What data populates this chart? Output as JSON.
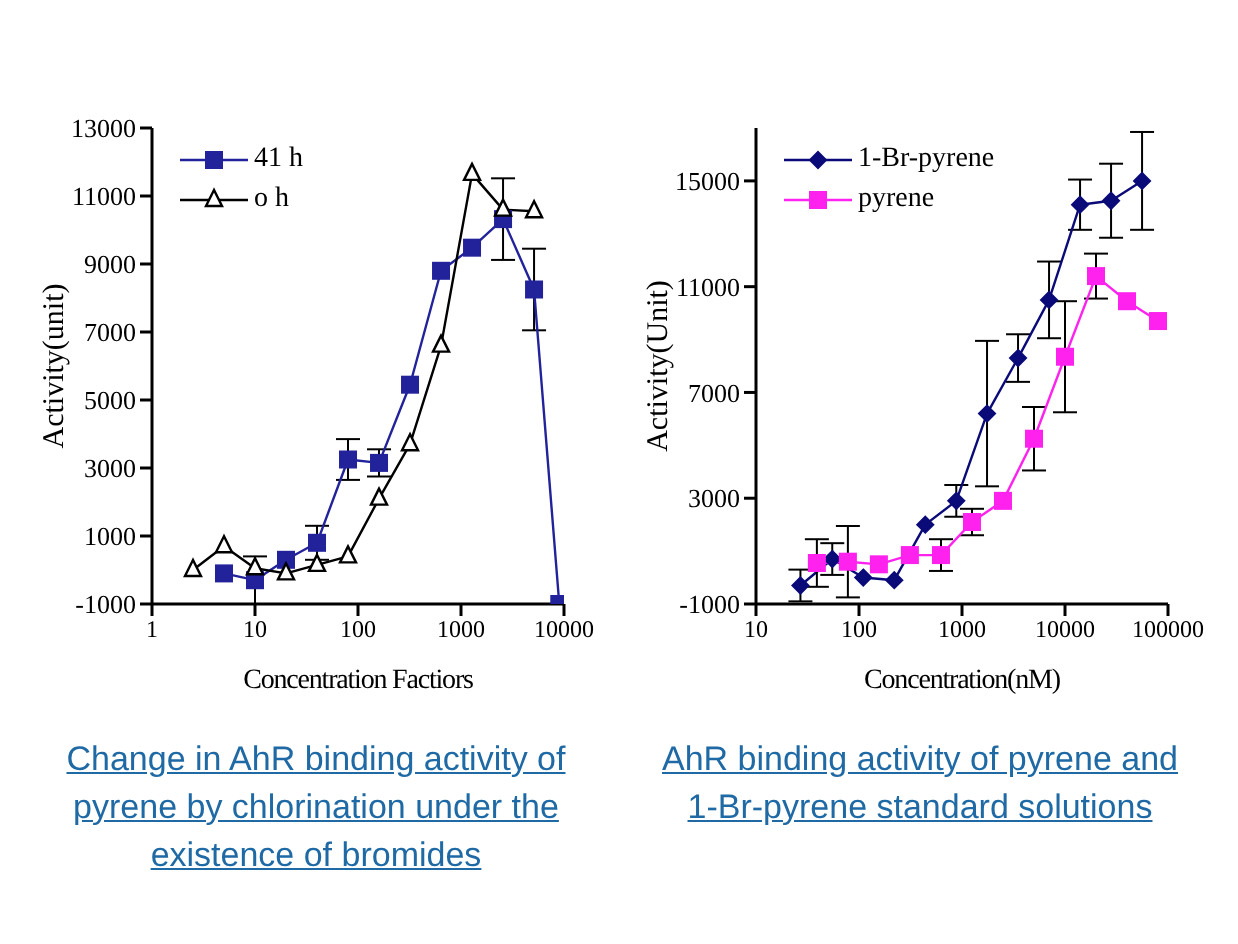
{
  "chart_data": [
    {
      "type": "line",
      "title": "Change in AhR binding activity of pyrene by chlorination under the existence of bromides",
      "xlabel": "Concentration Factiors",
      "ylabel": "Activity(unit)",
      "log": "x",
      "xlim": [
        1,
        10000
      ],
      "xticks": [
        1,
        10,
        100,
        1000,
        10000
      ],
      "ylim": [
        -1000,
        13000
      ],
      "yticks": [
        -1000,
        1000,
        3000,
        5000,
        7000,
        9000,
        11000,
        13000
      ],
      "legend": "top left",
      "grid": false,
      "series": [
        {
          "name": "41 h",
          "color": "#22229a",
          "marker": "square",
          "x": [
            5,
            10,
            20,
            40,
            80,
            160,
            320,
            640,
            1280,
            2560,
            5120,
            9000
          ],
          "values": [
            -100,
            -300,
            300,
            800,
            3250,
            3150,
            5450,
            8800,
            9480,
            10320,
            8250,
            -1000
          ],
          "errors": [
            null,
            700,
            null,
            500,
            600,
            400,
            null,
            null,
            null,
            1200,
            1200,
            null
          ]
        },
        {
          "name": "o h",
          "color": "#000000",
          "marker": "triangle",
          "x": [
            2.5,
            5,
            10,
            20,
            40,
            80,
            160,
            320,
            640,
            1280,
            2560,
            5120
          ],
          "values": [
            0,
            700,
            50,
            -100,
            150,
            400,
            2100,
            3700,
            6600,
            11650,
            10600,
            10550
          ]
        }
      ]
    },
    {
      "type": "line",
      "title": "AhR binding activity of pyrene and 1-Br-pyrene standard solutions",
      "xlabel": "Concentration(nM)",
      "ylabel": "Activity(Unit)",
      "log": "x",
      "xlim": [
        10,
        100000
      ],
      "xticks": [
        10,
        100,
        1000,
        10000,
        100000
      ],
      "ylim": [
        -1000,
        17000
      ],
      "yticks": [
        -1000,
        3000,
        7000,
        11000,
        15000
      ],
      "legend": "top left",
      "grid": false,
      "series": [
        {
          "name": "1-Br-pyrene",
          "color": "#0a0a78",
          "marker": "diamond",
          "x": [
            27,
            55,
            110,
            220,
            440,
            880,
            1750,
            3500,
            7000,
            14000,
            28000,
            56000
          ],
          "values": [
            -300,
            700,
            0,
            -100,
            2000,
            2900,
            6200,
            8300,
            10500,
            14100,
            14250,
            15000
          ],
          "errors": [
            600,
            600,
            null,
            null,
            null,
            600,
            2750,
            900,
            1450,
            950,
            1400,
            1850
          ]
        },
        {
          "name": "pyrene",
          "color": "#ff22ee",
          "marker": "square",
          "x": [
            39,
            78,
            156,
            312,
            625,
            1250,
            2500,
            5000,
            10000,
            20000,
            40000,
            80000
          ],
          "values": [
            550,
            600,
            500,
            850,
            850,
            2100,
            2900,
            5250,
            8350,
            11400,
            10450,
            9700
          ],
          "errors": [
            900,
            1350,
            null,
            null,
            600,
            500,
            null,
            1200,
            2100,
            850,
            null,
            null
          ]
        }
      ]
    }
  ]
}
